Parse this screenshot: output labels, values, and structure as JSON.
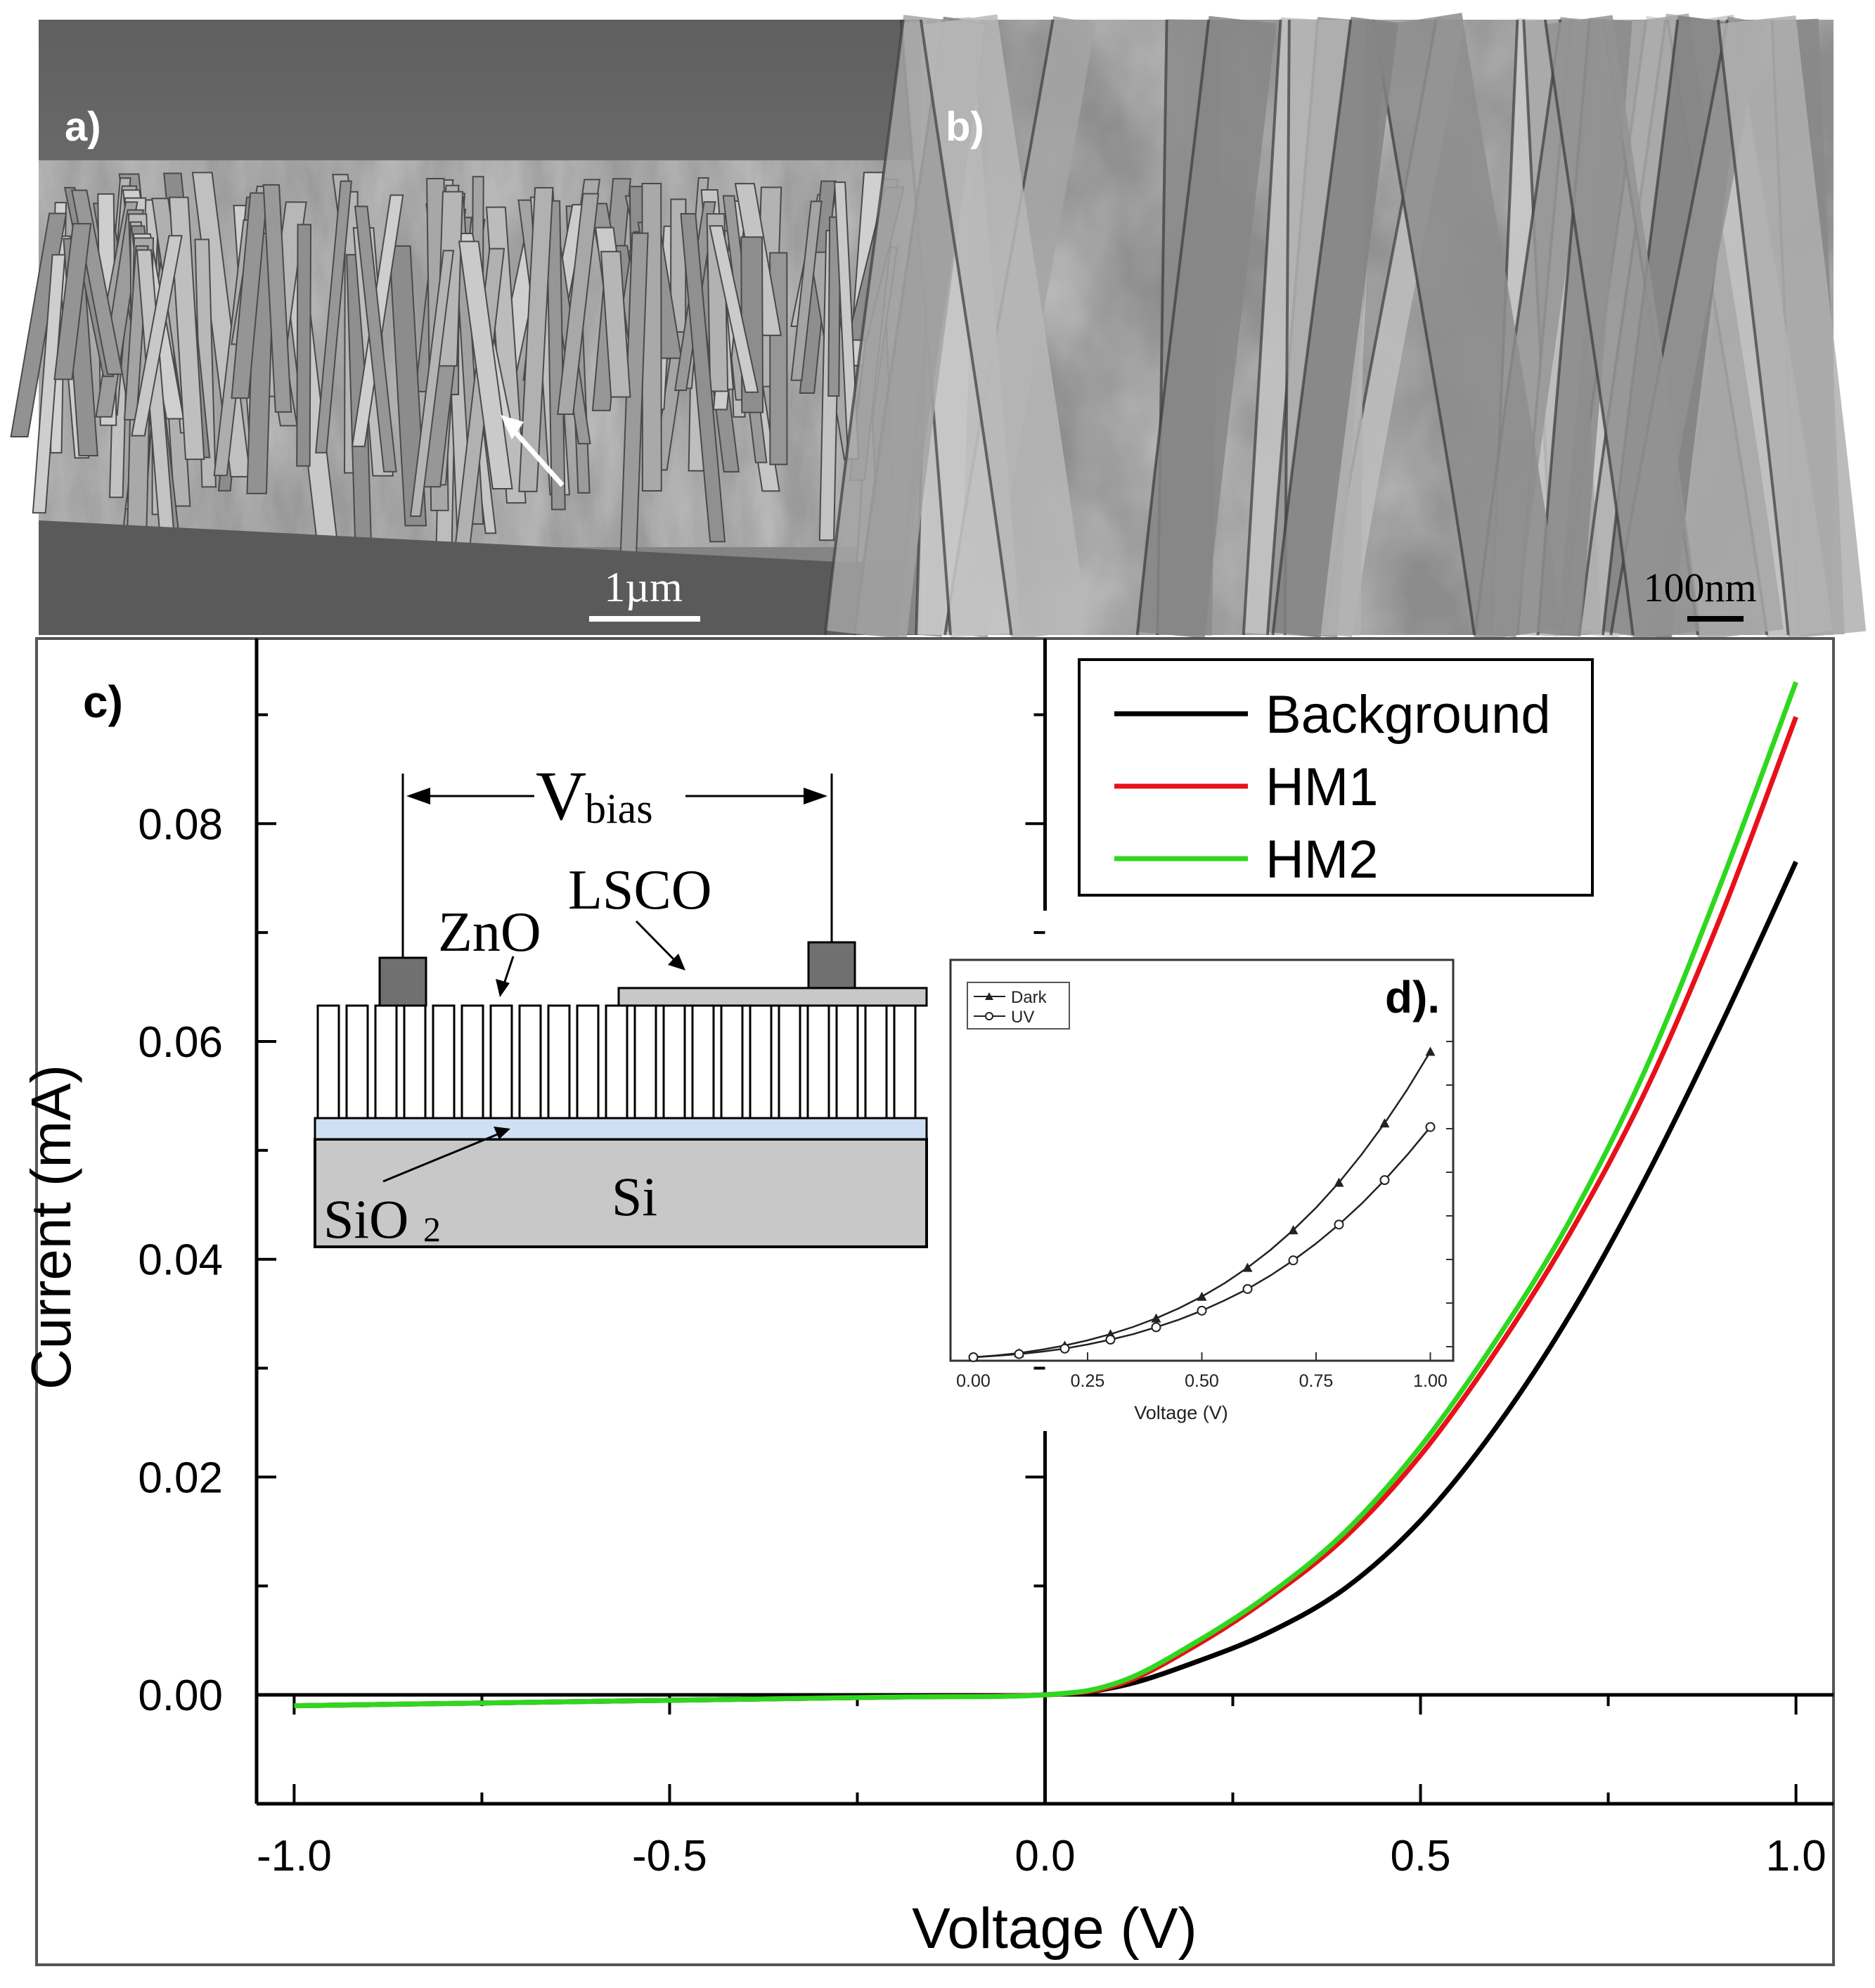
{
  "panels": {
    "a": {
      "label": "a)",
      "scale_bar": "1µm"
    },
    "b": {
      "label": "b)",
      "scale_bar": "100nm"
    },
    "c": {
      "label": "c)"
    },
    "d": {
      "label": "d)."
    }
  },
  "schematic": {
    "vbias_main": "V",
    "vbias_sub": "bias",
    "zno": "ZnO",
    "lsco": "LSCO",
    "sio2_main": "SiO",
    "sio2_sub": "2",
    "si": "Si"
  },
  "colors": {
    "background": "#000000",
    "hm1": "#e8101a",
    "hm2": "#2ed81e",
    "sem_bg": "#8c8c8c"
  },
  "chart_data": [
    {
      "type": "line",
      "panel": "c",
      "xlabel": "Voltage (V)",
      "ylabel": "Current (mA)",
      "xlim": [
        -1.05,
        1.05
      ],
      "ylim": [
        -0.01,
        0.097
      ],
      "x_ticks": [
        "-1.0",
        "-0.5",
        "0.0",
        "0.5",
        "1.0"
      ],
      "y_ticks": [
        "0.00",
        "0.02",
        "0.04",
        "0.06",
        "0.08"
      ],
      "legend_position": "top-right",
      "grid": false,
      "x": [
        -1.0,
        -0.8,
        -0.6,
        -0.4,
        -0.2,
        0.0,
        0.1,
        0.2,
        0.3,
        0.4,
        0.5,
        0.6,
        0.7,
        0.8,
        0.9,
        1.0
      ],
      "series": [
        {
          "name": "Background",
          "color": "#000000",
          "values": [
            -0.001,
            -0.0008,
            -0.0006,
            -0.0004,
            -0.0002,
            0.0,
            0.0008,
            0.003,
            0.0058,
            0.0098,
            0.016,
            0.0245,
            0.035,
            0.0475,
            0.0615,
            0.0765
          ]
        },
        {
          "name": "HM1",
          "color": "#e8101a",
          "values": [
            -0.001,
            -0.0008,
            -0.0006,
            -0.0004,
            -0.0002,
            0.0,
            0.001,
            0.0045,
            0.009,
            0.0145,
            0.022,
            0.0315,
            0.0425,
            0.0555,
            0.0715,
            0.0898
          ]
        },
        {
          "name": "HM2",
          "color": "#2ed81e",
          "values": [
            -0.001,
            -0.0008,
            -0.0006,
            -0.0004,
            -0.0002,
            0.0,
            0.0012,
            0.0048,
            0.0093,
            0.015,
            0.0228,
            0.0325,
            0.0437,
            0.0575,
            0.0745,
            0.093
          ]
        }
      ]
    },
    {
      "type": "line",
      "panel": "d",
      "xlabel": "Voltage (V)",
      "ylabel": "",
      "xlim": [
        -0.05,
        1.05
      ],
      "ylim": [
        0,
        1
      ],
      "x_ticks": [
        "0.00",
        "0.25",
        "0.50",
        "0.75",
        "1.00"
      ],
      "legend_position": "top-left",
      "grid": false,
      "x": [
        0.0,
        0.05,
        0.1,
        0.15,
        0.2,
        0.25,
        0.3,
        0.35,
        0.4,
        0.45,
        0.5,
        0.55,
        0.6,
        0.65,
        0.7,
        0.75,
        0.8,
        0.85,
        0.9,
        0.95,
        1.0
      ],
      "series": [
        {
          "name": "Dark",
          "marker": "triangle",
          "values": [
            0.0,
            0.005,
            0.012,
            0.022,
            0.034,
            0.049,
            0.067,
            0.088,
            0.113,
            0.142,
            0.176,
            0.215,
            0.26,
            0.311,
            0.369,
            0.434,
            0.507,
            0.589,
            0.679,
            0.778,
            0.887
          ]
        },
        {
          "name": "UV",
          "marker": "circle",
          "values": [
            0.0,
            0.004,
            0.009,
            0.016,
            0.025,
            0.037,
            0.051,
            0.067,
            0.087,
            0.109,
            0.135,
            0.165,
            0.198,
            0.237,
            0.281,
            0.33,
            0.385,
            0.446,
            0.514,
            0.588,
            0.668
          ]
        }
      ]
    }
  ]
}
